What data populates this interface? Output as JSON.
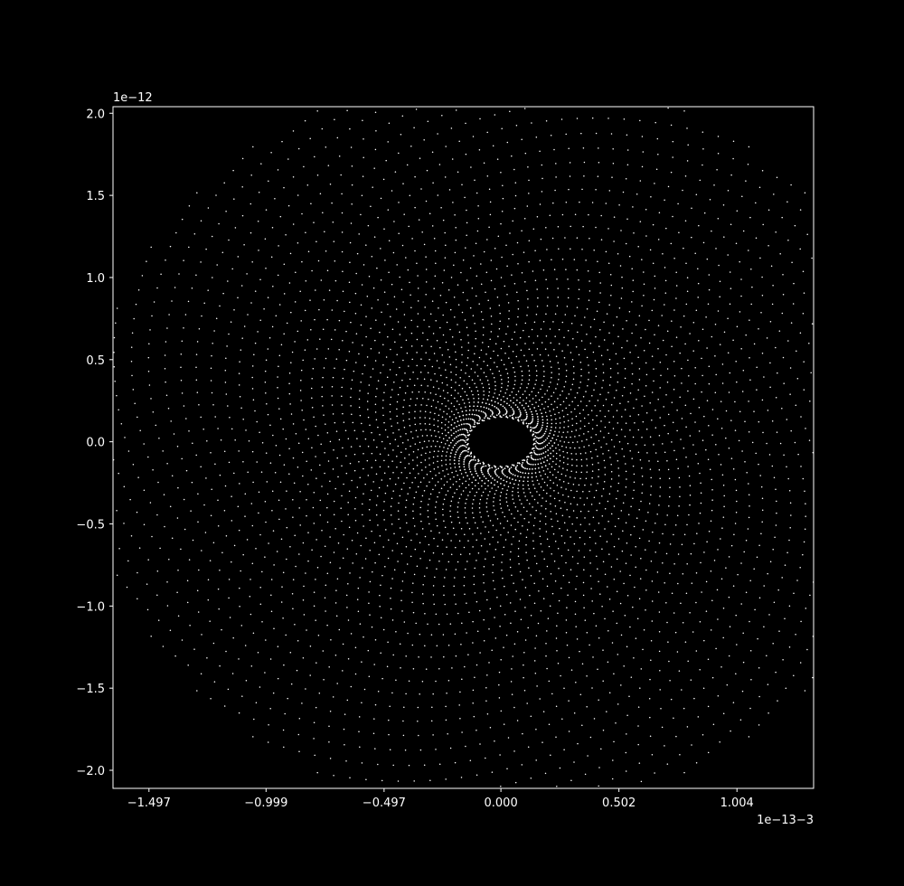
{
  "chart_data": {
    "type": "scatter",
    "title": "",
    "xlabel": "",
    "ylabel": "",
    "x_offset_text": "1e−13−3",
    "y_offset_text": "1e−12",
    "x_ticks": [
      {
        "value": -1.497,
        "label": "−1.497"
      },
      {
        "value": -0.999,
        "label": "−0.999"
      },
      {
        "value": -0.497,
        "label": "−0.497"
      },
      {
        "value": 0.0,
        "label": "0.000"
      },
      {
        "value": 0.502,
        "label": "0.502"
      },
      {
        "value": 1.004,
        "label": "1.004"
      }
    ],
    "y_ticks": [
      {
        "value": 2.0,
        "label": "2.0"
      },
      {
        "value": 1.5,
        "label": "1.5"
      },
      {
        "value": 1.0,
        "label": "1.0"
      },
      {
        "value": 0.5,
        "label": "0.5"
      },
      {
        "value": 0.0,
        "label": "0.0"
      },
      {
        "value": -0.5,
        "label": "−0.5"
      },
      {
        "value": -1.0,
        "label": "−1.0"
      },
      {
        "value": -1.5,
        "label": "−1.5"
      },
      {
        "value": -2.0,
        "label": "−2.0"
      }
    ],
    "xlim": [
      -1.65,
      1.33
    ],
    "ylim": [
      -2.11,
      2.04
    ],
    "grid": false,
    "background": "#000000",
    "foreground": "#ffffff",
    "point_color": "#ffffff",
    "pattern": {
      "shape": "spiral lattice",
      "arms": 34,
      "turns": 1.6,
      "points_per_arm": 130,
      "inner_hole_radius": [
        0.14,
        0.15
      ],
      "outer_radius": [
        1.75,
        2.25
      ]
    }
  }
}
